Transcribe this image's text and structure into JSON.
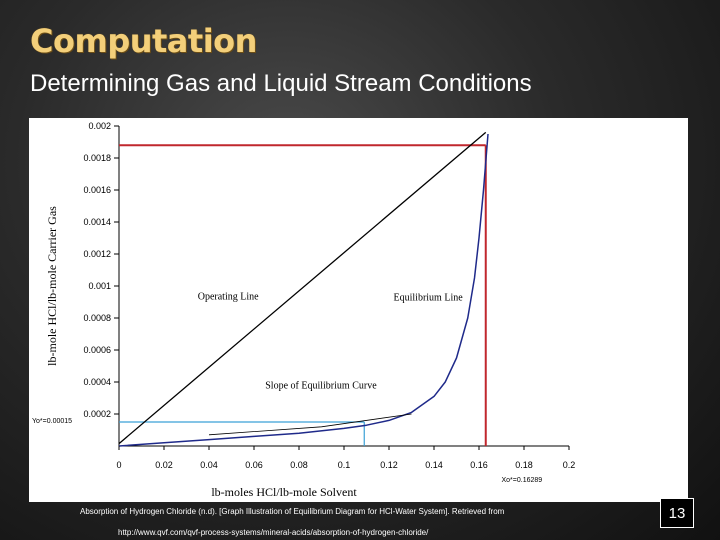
{
  "slide": {
    "title": "Computation",
    "subtitle": "Determining Gas and Liquid Stream Conditions",
    "citation": "Absorption of Hydrogen Chloride (n.d). [Graph Illustration of Equilibrium Diagram for HCl-Water System]. Retrieved from",
    "url": "http://www.qvf.com/qvf-process-systems/mineral-acids/absorption-of-hydrogen-chloride/",
    "page_number": "13"
  },
  "colors": {
    "title": "#f3cf7a",
    "operating_line": "#000000",
    "equilibrium_curve": "#1f2a8a",
    "red_lines": "#c0272d",
    "blue_lines": "#3aa0d6"
  },
  "chart_data": {
    "type": "line",
    "xlabel": "lb-moles HCl/lb-mole Solvent",
    "ylabel": "lb-mole HCl/lb-mole Carrier Gas",
    "xlim": [
      0,
      0.2
    ],
    "ylim": [
      0,
      0.002
    ],
    "x_ticks": [
      "0",
      "0.02",
      "0.04",
      "0.06",
      "0.08",
      "0.1",
      "0.12",
      "0.14",
      "0.16",
      "0.18",
      "0.2"
    ],
    "y_ticks": [
      "0.0002",
      "0.0004",
      "0.0006",
      "0.0008",
      "0.001",
      "0.0012",
      "0.0014",
      "0.0016",
      "0.0018",
      "0.002"
    ],
    "grid": false,
    "series": [
      {
        "name": "Operating Line",
        "x": [
          0,
          0.163
        ],
        "y": [
          1.5e-05,
          0.00196
        ]
      },
      {
        "name": "Equilibrium Line",
        "x": [
          0,
          0.02,
          0.04,
          0.06,
          0.08,
          0.1,
          0.11,
          0.12,
          0.13,
          0.14,
          0.145,
          0.15,
          0.155,
          0.158,
          0.16,
          0.162,
          0.164
        ],
        "y": [
          0,
          2e-05,
          4e-05,
          6e-05,
          8e-05,
          0.00011,
          0.00013,
          0.00016,
          0.00021,
          0.00031,
          0.0004,
          0.00055,
          0.0008,
          0.00105,
          0.0013,
          0.0016,
          0.00195
        ]
      },
      {
        "name": "Slope of Equilibrium Curve",
        "x": [
          0.04,
          0.09,
          0.13
        ],
        "y": [
          7e-05,
          0.00012,
          0.0002
        ]
      }
    ],
    "guides": {
      "red_h_y": 0.00188,
      "red_v_x": 0.163,
      "blue_h_y": 0.00015,
      "blue_v_x": 0.109
    },
    "annotations": {
      "operating_line": "Operating Line",
      "equilibrium_line": "Equilibrium Line",
      "slope_label": "Slope of Equilibrium Curve",
      "y0_star": "Yo*=0.00015",
      "x0_star": "Xo*=0.16289"
    }
  }
}
